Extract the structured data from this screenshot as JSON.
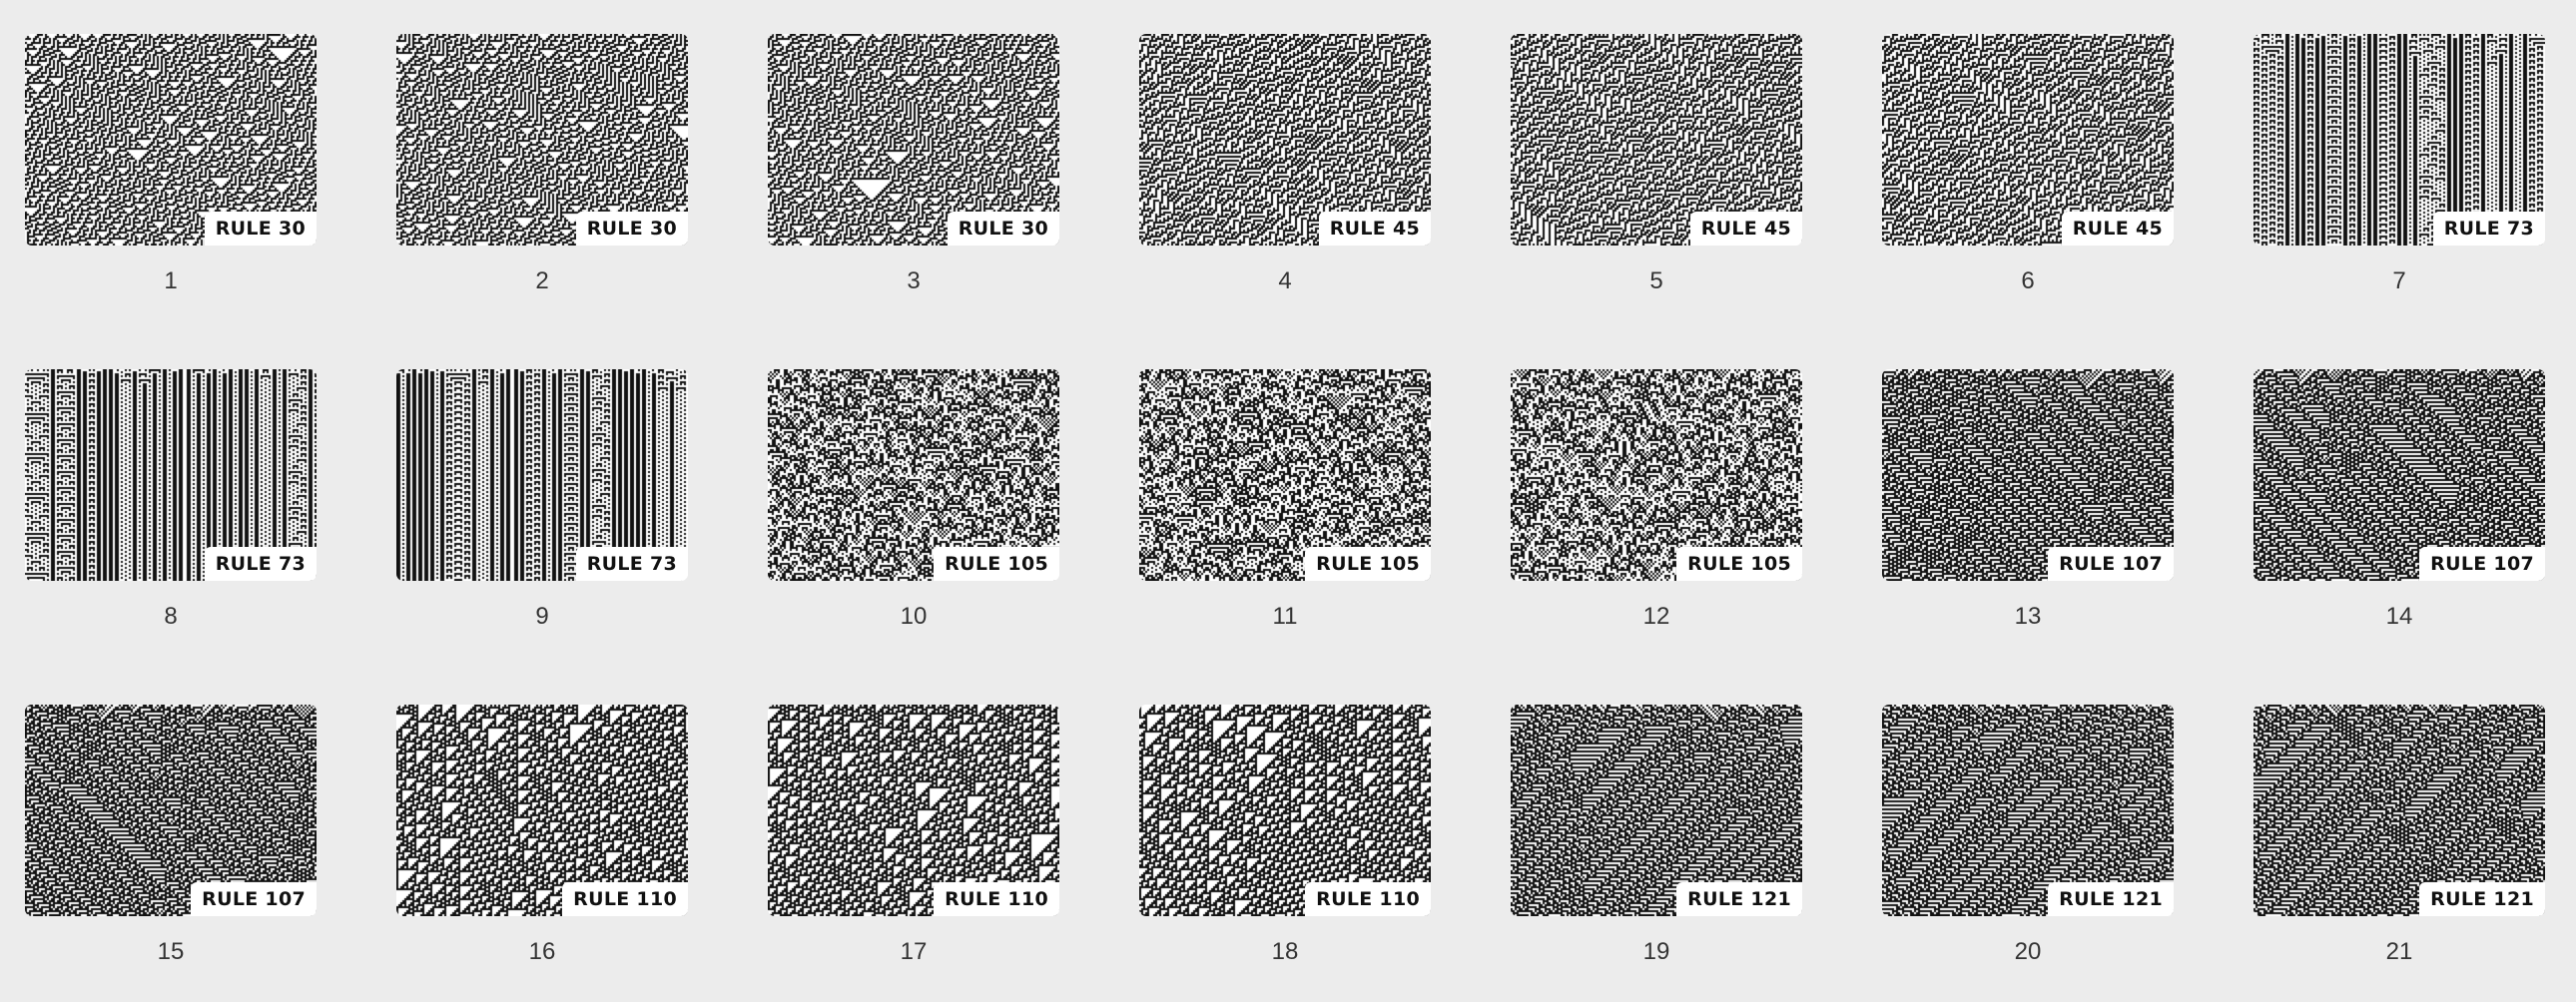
{
  "gallery": {
    "items": [
      {
        "index": "1",
        "label": "RULE 30",
        "rule": 30
      },
      {
        "index": "2",
        "label": "RULE 30",
        "rule": 30
      },
      {
        "index": "3",
        "label": "RULE 30",
        "rule": 30
      },
      {
        "index": "4",
        "label": "RULE 45",
        "rule": 45
      },
      {
        "index": "5",
        "label": "RULE 45",
        "rule": 45
      },
      {
        "index": "6",
        "label": "RULE 45",
        "rule": 45
      },
      {
        "index": "7",
        "label": "RULE 73",
        "rule": 73
      },
      {
        "index": "8",
        "label": "RULE 73",
        "rule": 73
      },
      {
        "index": "9",
        "label": "RULE 73",
        "rule": 73
      },
      {
        "index": "10",
        "label": "RULE 105",
        "rule": 105
      },
      {
        "index": "11",
        "label": "RULE 105",
        "rule": 105
      },
      {
        "index": "12",
        "label": "RULE 105",
        "rule": 105
      },
      {
        "index": "13",
        "label": "RULE 107",
        "rule": 107
      },
      {
        "index": "14",
        "label": "RULE 107",
        "rule": 107
      },
      {
        "index": "15",
        "label": "RULE 107",
        "rule": 107
      },
      {
        "index": "16",
        "label": "RULE 110",
        "rule": 110
      },
      {
        "index": "17",
        "label": "RULE 110",
        "rule": 110
      },
      {
        "index": "18",
        "label": "RULE 110",
        "rule": 110
      },
      {
        "index": "19",
        "label": "RULE 121",
        "rule": 121
      },
      {
        "index": "20",
        "label": "RULE 121",
        "rule": 121
      },
      {
        "index": "21",
        "label": "RULE 121",
        "rule": 121
      }
    ]
  },
  "colors": {
    "background": "#ececec",
    "cell_on": "#111111",
    "cell_off": "#ffffff",
    "badge_bg": "#ffffff",
    "caption": "#333333"
  }
}
